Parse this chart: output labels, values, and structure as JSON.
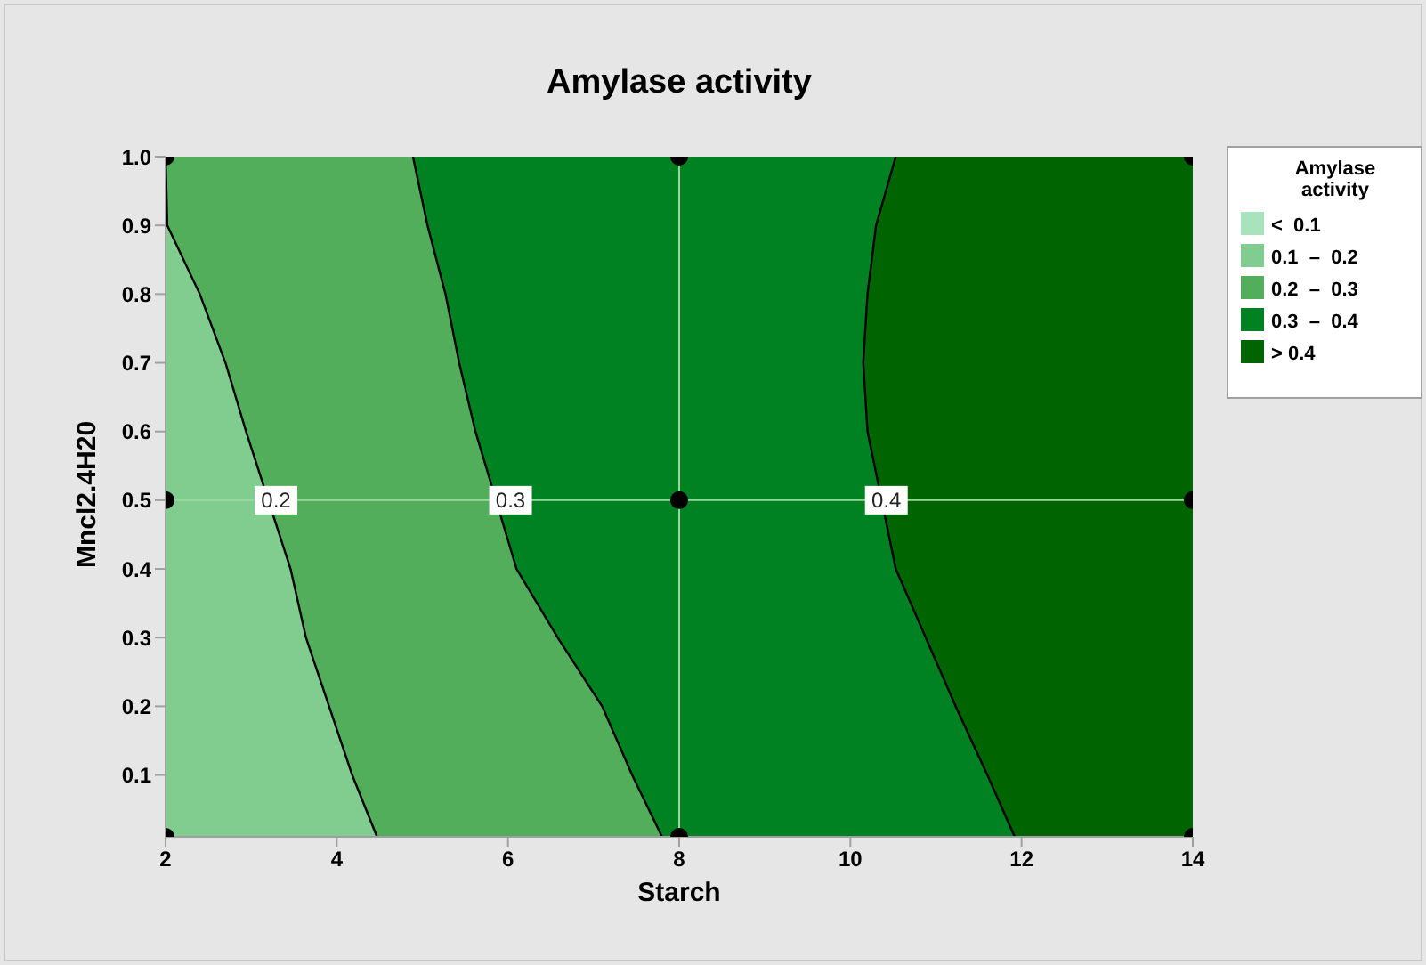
{
  "chart_data": {
    "type": "area",
    "orientation": "horizontal",
    "title": "Amylase activity",
    "xlabel": "Starch",
    "ylabel": "Mncl2.4H20",
    "legend_title": "Amylase activity",
    "legend": "right",
    "grid": false,
    "x": [
      0.01,
      0.1,
      0.2,
      0.3,
      0.4,
      0.6,
      0.7,
      0.8,
      0.9,
      1
    ],
    "xlim": [
      2,
      14
    ],
    "xticks": [
      2,
      4,
      6,
      8,
      10,
      12,
      14
    ],
    "ylim": [
      0.01,
      1
    ],
    "yticks": [
      0.1,
      0.2,
      0.3,
      0.4,
      0.5,
      0.6,
      0.7,
      0.8,
      0.9,
      {
        "value": 1,
        "label": "1.0"
      }
    ],
    "series": [
      {
        "name": "<  0.1",
        "color": "#a8e4bb",
        "values": [
          null,
          null,
          null,
          null,
          null,
          null,
          null,
          null,
          null,
          null
        ]
      },
      {
        "name": "0.1  –  0.2",
        "color": "#80cd8f",
        "values": [
          4.47,
          4.18,
          3.91,
          3.64,
          3.46,
          2.94,
          2.7,
          2.4,
          2.02,
          2
        ]
      },
      {
        "name": "0.2  –  0.3",
        "color": "#53ae5c",
        "values": [
          7.8,
          7.45,
          7.1,
          6.58,
          6.1,
          5.62,
          5.43,
          5.27,
          5.06,
          4.89
        ]
      },
      {
        "name": "0.3  –  0.4",
        "color": "#008122",
        "values": [
          11.92,
          11.6,
          11.23,
          10.88,
          10.53,
          10.2,
          10.15,
          10.2,
          10.3,
          10.53
        ]
      },
      {
        "name": "> 0.4",
        "color": "#006400",
        "values": [
          14,
          14,
          14,
          14,
          14,
          14,
          14,
          14,
          14,
          14
        ]
      },
      {
        "type": "scatter",
        "color": "#000000",
        "marker": "circle",
        "x": [
          0.01,
          0.5,
          1,
          0.01,
          0.5,
          1,
          0.01,
          0.5,
          1
        ],
        "values": [
          2,
          2,
          2,
          8,
          8,
          8,
          14,
          14,
          14
        ]
      }
    ],
    "ref_lines": [
      {
        "axis": "x",
        "value": 8,
        "color": "#9ad89a"
      },
      {
        "axis": "y",
        "value": 0.5,
        "color": "#9ad89a"
      }
    ],
    "annotations": [
      {
        "text": "0.2",
        "x": 3.29,
        "y": 0.5
      },
      {
        "text": "0.3",
        "x": 6.03,
        "y": 0.5
      },
      {
        "text": "0.4",
        "x": 10.42,
        "y": 0.5
      }
    ]
  }
}
